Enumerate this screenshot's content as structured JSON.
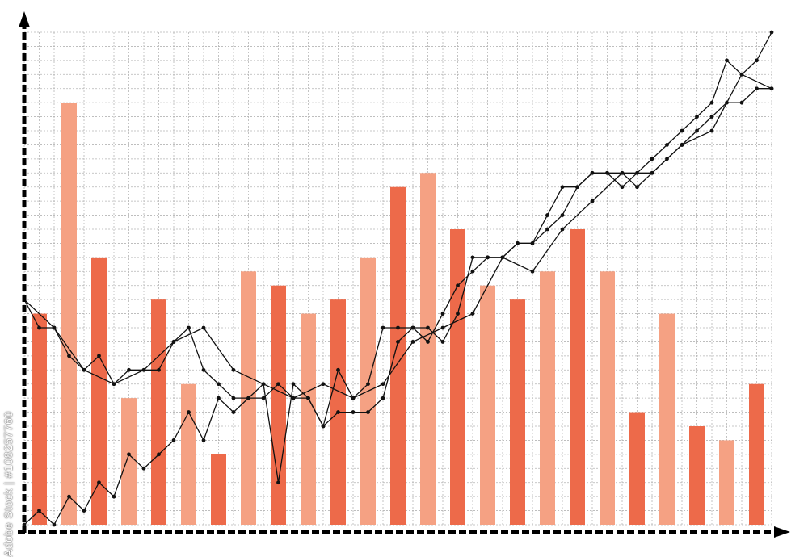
{
  "watermark": "Adobe Stock | #108257760",
  "colors": {
    "bar_dark": "#ed6a4a",
    "bar_light": "#f5a183",
    "line": "#111111",
    "grid": "#b5b5b5",
    "axis": "#000000"
  },
  "chart_data": {
    "type": "bar",
    "grid": true,
    "xlim": [
      0,
      50
    ],
    "ylim": [
      0,
      35
    ],
    "bars": {
      "x": [
        1,
        3,
        5,
        7,
        9,
        11,
        13,
        15,
        17,
        19,
        21,
        23,
        25,
        27,
        29,
        31,
        33,
        35,
        37,
        39,
        41,
        43,
        45,
        47,
        49
      ],
      "values": [
        15,
        30,
        19,
        9,
        16,
        10,
        5,
        18,
        17,
        15,
        16,
        19,
        24,
        25,
        21,
        17,
        16,
        18,
        21,
        18,
        8,
        15,
        7,
        6,
        10
      ],
      "shades": [
        "dark",
        "light",
        "dark",
        "light",
        "dark",
        "light",
        "dark",
        "light",
        "dark",
        "light",
        "dark",
        "light",
        "dark",
        "light",
        "dark",
        "light",
        "dark",
        "light",
        "dark",
        "light",
        "dark",
        "light",
        "dark",
        "light",
        "dark"
      ]
    },
    "series": [
      {
        "x": [
          0,
          1,
          2,
          3,
          4,
          5,
          6,
          7,
          8,
          9,
          10,
          11,
          12,
          13,
          14,
          15,
          16,
          17,
          18,
          19,
          20,
          21,
          22,
          23,
          24,
          25,
          26,
          27,
          28,
          29,
          30,
          31,
          32,
          33,
          34,
          35,
          36,
          37,
          38,
          39,
          40,
          41,
          42,
          43,
          44,
          45,
          46,
          47,
          48,
          49,
          50
        ],
        "values": [
          16,
          14,
          14,
          12,
          11,
          12,
          10,
          11,
          11,
          11,
          13,
          14,
          11,
          10,
          9,
          9,
          9,
          10,
          9,
          9,
          7,
          8,
          8,
          8,
          9,
          13,
          14,
          14,
          13,
          15,
          19,
          19,
          19,
          20,
          20,
          22,
          24,
          24,
          25,
          25,
          25,
          24,
          25,
          26,
          27,
          28,
          29,
          30,
          30,
          31,
          31
        ]
      },
      {
        "x": [
          0,
          1,
          2,
          3,
          4,
          5,
          6,
          7,
          8,
          9,
          10,
          11,
          12,
          13,
          14,
          15,
          16,
          17,
          18,
          19,
          20,
          21,
          22,
          23,
          24,
          25,
          26,
          27,
          28,
          29,
          30,
          31,
          32,
          33,
          34,
          35,
          36,
          37,
          38,
          39,
          40,
          41,
          42,
          43,
          44,
          45,
          46,
          47,
          48,
          49,
          50
        ],
        "values": [
          0,
          1,
          0,
          2,
          1,
          3,
          2,
          5,
          4,
          5,
          6,
          8,
          6,
          9,
          8,
          9,
          10,
          3,
          10,
          9,
          7,
          11,
          9,
          10,
          14,
          14,
          14,
          13,
          15,
          17,
          18,
          19,
          19,
          20,
          20,
          21,
          22,
          24,
          25,
          25,
          24,
          25,
          26,
          27,
          28,
          29,
          30,
          33,
          32,
          33,
          35
        ]
      },
      {
        "x": [
          0,
          2,
          4,
          6,
          8,
          10,
          12,
          14,
          16,
          18,
          20,
          22,
          24,
          26,
          28,
          30,
          32,
          34,
          36,
          38,
          40,
          42,
          44,
          46,
          48,
          50
        ],
        "values": [
          16,
          14,
          11,
          10,
          11,
          13,
          14,
          11,
          10,
          9,
          10,
          9,
          10,
          13,
          14,
          15,
          19,
          18,
          21,
          23,
          25,
          25,
          27,
          28,
          32,
          31
        ]
      }
    ]
  }
}
